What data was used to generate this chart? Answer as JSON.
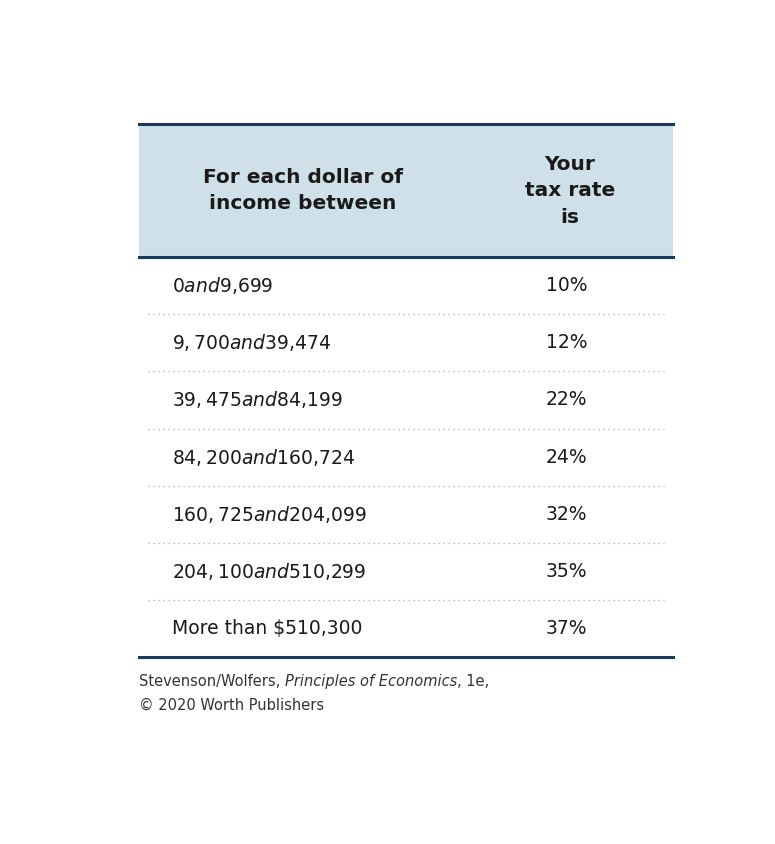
{
  "header_col1": "For each dollar of\nincome between",
  "header_col2": "Your\ntax rate\nis",
  "rows": [
    [
      "$0 and $9,699",
      "10%"
    ],
    [
      "$9,700 and $39,474",
      "12%"
    ],
    [
      "$39,475 and $84,199",
      "22%"
    ],
    [
      "$84,200 and $160,724",
      "24%"
    ],
    [
      "$160,725 and $204,099",
      "32%"
    ],
    [
      "$204,100 and $510,299",
      "35%"
    ],
    [
      "More than $510,300",
      "37%"
    ]
  ],
  "footer_normal1": "Stevenson/Wolfers, ",
  "footer_italic": "Principles of Economics",
  "footer_normal2": ", 1e,",
  "footer_line2": "© 2020 Worth Publishers",
  "header_bg": "#cfe0e8",
  "body_bg": "#ffffff",
  "border_color": "#1a3a5c",
  "dotted_line_color": "#aaaaaa",
  "header_text_color": "#1a1a1a",
  "body_text_color": "#1a1a1a",
  "footer_text_color": "#333333",
  "fig_bg": "#ffffff",
  "fig_width": 7.75,
  "fig_height": 8.44,
  "dpi": 100
}
